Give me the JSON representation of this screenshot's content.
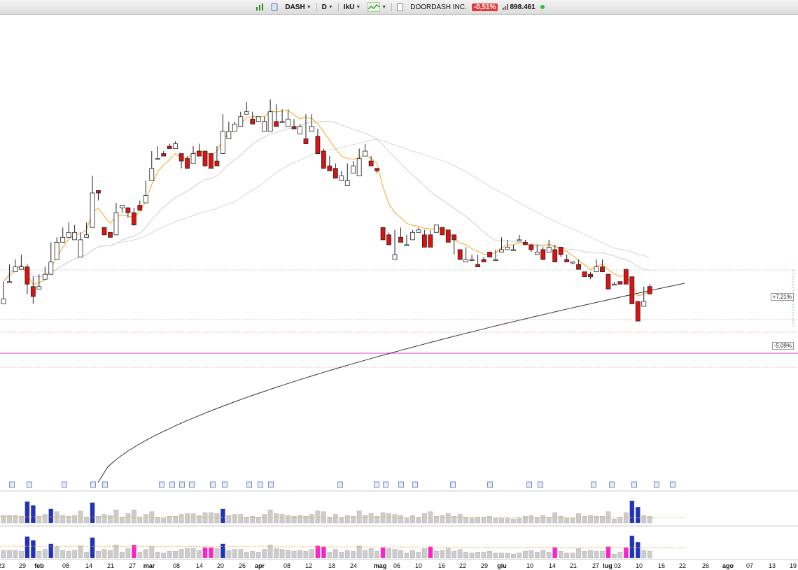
{
  "toolbar": {
    "symbol": "DASH",
    "interval": "D",
    "indicator_set": "IkU",
    "company": "DOORDASH INC.",
    "change": "-0,51%",
    "volume": "898.461",
    "icons": [
      "bars-icon",
      "datasheet-icon",
      "chart-type-icon",
      "document-icon"
    ]
  },
  "colors": {
    "bear": "#dd1111",
    "bull": "#ffffff",
    "ema_fast": "#f5a623",
    "vol_up": "#2233bb",
    "vol_down": "#ff22cc",
    "sma200": "#333333"
  },
  "tags": {
    "upper": "+7,21%",
    "lower": "-5,09%"
  },
  "chart_data": {
    "type": "candlestick",
    "x_ticks": [
      "23",
      "29",
      "feb",
      "08",
      "14",
      "21",
      "27",
      "mar",
      "08",
      "14",
      "20",
      "26",
      "apr",
      "08",
      "12",
      "18",
      "24",
      "mag",
      "06",
      "10",
      "16",
      "22",
      "29",
      "giu",
      "10",
      "14",
      "21",
      "27",
      "lug",
      "03",
      "10",
      "16",
      "22",
      "26",
      "ago",
      "07",
      "13",
      "19"
    ],
    "y_axis": "no price labels visible",
    "note": "OHLC values are relative price-scale units estimated from the screenshot (price labels off-screen)",
    "candles": [
      [
        86,
        88,
        93,
        95
      ],
      [
        95,
        95,
        98,
        102
      ],
      [
        99,
        101,
        102,
        104
      ],
      [
        100,
        101,
        104,
        106
      ],
      [
        101,
        94,
        102,
        90
      ],
      [
        93,
        89,
        97,
        86
      ],
      [
        92,
        93,
        98,
        96
      ],
      [
        96,
        98,
        101,
        98
      ],
      [
        98,
        103,
        105,
        111
      ],
      [
        104,
        111,
        112,
        113
      ],
      [
        111,
        113,
        115,
        117
      ],
      [
        113,
        115,
        118,
        119
      ],
      [
        112,
        115,
        117,
        118
      ],
      [
        105,
        112,
        113,
        115
      ],
      [
        113,
        114,
        118,
        119
      ],
      [
        117,
        131,
        134,
        138
      ],
      [
        132,
        131,
        130,
        128
      ],
      [
        117,
        114,
        117,
        115
      ],
      [
        115,
        113,
        115,
        113
      ],
      [
        114,
        123,
        126,
        127
      ],
      [
        125,
        126,
        124,
        123
      ],
      [
        125,
        123,
        125,
        121
      ],
      [
        123,
        118,
        125,
        120
      ],
      [
        126,
        124,
        128,
        128
      ],
      [
        127,
        130,
        134,
        136
      ],
      [
        136,
        141,
        145,
        148
      ],
      [
        145,
        145,
        148,
        150
      ],
      [
        147,
        146,
        148,
        148
      ],
      [
        150,
        149,
        151,
        149
      ],
      [
        149,
        151,
        151,
        152
      ],
      [
        147,
        144,
        143,
        141
      ],
      [
        145,
        141,
        144,
        146
      ],
      [
        143,
        147,
        148,
        150
      ],
      [
        148,
        146,
        149,
        151
      ],
      [
        148,
        142,
        146,
        145
      ],
      [
        147,
        141,
        145,
        146
      ],
      [
        144,
        142,
        146,
        150
      ],
      [
        147,
        156,
        161,
        163
      ],
      [
        153,
        156,
        159,
        160
      ],
      [
        156,
        159,
        158,
        160
      ],
      [
        158,
        162,
        164,
        163
      ],
      [
        163,
        164,
        168,
        167
      ],
      [
        161,
        159,
        164,
        163
      ],
      [
        160,
        162,
        162,
        162
      ],
      [
        156,
        160,
        161,
        162
      ],
      [
        156,
        164,
        167,
        169
      ],
      [
        160,
        158,
        167,
        163
      ],
      [
        160,
        160,
        160,
        165
      ],
      [
        158,
        161,
        164,
        165
      ],
      [
        158,
        157,
        161,
        159
      ],
      [
        155,
        158,
        159,
        158
      ],
      [
        153,
        151,
        162,
        163
      ],
      [
        156,
        158,
        163,
        160
      ],
      [
        154,
        147,
        157,
        155
      ],
      [
        148,
        141,
        148,
        149
      ],
      [
        142,
        140,
        146,
        146
      ],
      [
        141,
        137,
        143,
        142
      ],
      [
        136,
        138,
        140,
        140
      ],
      [
        134,
        136,
        141,
        143
      ],
      [
        139,
        142,
        144,
        144
      ],
      [
        138,
        145,
        149,
        147
      ],
      [
        146,
        148,
        151,
        149
      ],
      [
        144,
        142,
        146,
        142
      ],
      [
        141,
        140,
        141,
        139
      ],
      [
        117,
        112,
        116,
        114
      ],
      [
        114,
        110,
        115,
        113
      ],
      [
        104,
        106,
        113,
        116
      ],
      [
        113,
        111,
        115,
        117
      ],
      [
        110,
        110,
        113,
        114
      ],
      [
        112,
        115,
        115,
        116
      ],
      [
        115,
        116,
        116,
        117
      ],
      [
        114,
        109,
        116,
        115
      ],
      [
        114,
        109,
        113,
        116
      ],
      [
        115,
        118,
        117,
        117
      ],
      [
        117,
        114,
        116,
        117
      ],
      [
        116,
        111,
        114,
        113
      ],
      [
        114,
        112,
        107,
        106
      ],
      [
        108,
        104,
        108,
        107
      ],
      [
        103,
        104,
        108,
        109
      ],
      [
        104,
        104,
        106,
        105
      ],
      [
        102,
        101,
        106,
        105
      ],
      [
        104,
        103,
        105,
        104
      ],
      [
        107,
        105,
        105,
        106
      ],
      [
        104,
        104,
        107,
        108
      ],
      [
        107,
        108,
        113,
        113
      ],
      [
        108,
        109,
        112,
        112
      ],
      [
        108,
        108,
        110,
        110
      ],
      [
        112,
        112,
        114,
        113
      ],
      [
        111,
        110,
        112,
        110
      ],
      [
        110,
        108,
        109,
        107
      ],
      [
        106,
        107,
        109,
        110
      ],
      [
        108,
        104,
        109,
        109
      ],
      [
        107,
        109,
        112,
        112
      ],
      [
        108,
        103,
        110,
        108
      ],
      [
        109,
        106,
        105,
        105
      ],
      [
        104,
        103,
        106,
        106
      ],
      [
        103,
        103,
        103,
        102
      ],
      [
        102,
        100,
        104,
        100
      ],
      [
        99,
        97,
        99,
        98
      ],
      [
        98,
        97,
        99,
        96
      ],
      [
        99,
        101,
        103,
        104
      ],
      [
        101,
        99,
        103,
        104
      ],
      [
        98,
        92,
        97,
        95
      ],
      [
        94,
        94,
        95,
        95
      ],
      [
        95,
        94,
        94,
        95
      ],
      [
        100,
        94,
        98,
        99
      ],
      [
        97,
        86,
        95,
        86
      ],
      [
        87,
        79,
        85,
        80
      ],
      [
        85,
        87,
        93,
        91
      ],
      [
        93,
        90,
        94,
        94
      ]
    ],
    "sma200_note": "long black moving average rising from lower left to right"
  }
}
